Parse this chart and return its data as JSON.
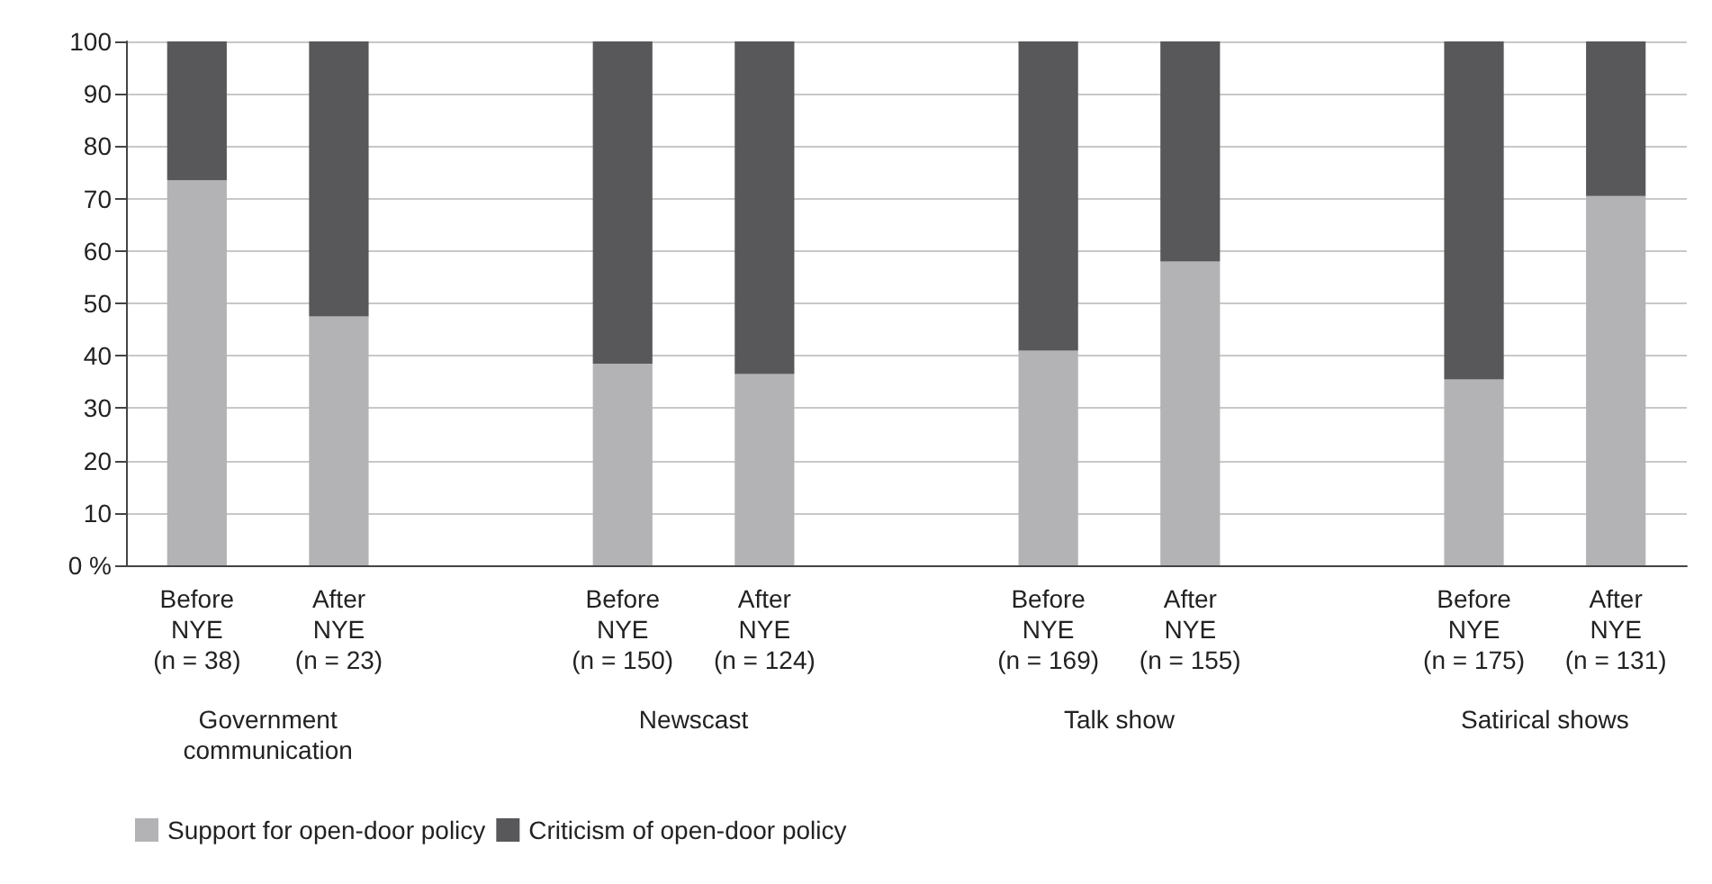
{
  "chart_data": {
    "type": "bar",
    "stacked": true,
    "categories": [
      "Before\nNYE\n(n = 38)",
      "After\nNYE\n(n = 23)",
      null,
      "Before\nNYE\n(n = 150)",
      "After\nNYE\n(n = 124)",
      null,
      "Before\nNYE\n(n = 169)",
      "After\nNYE\n(n = 155)",
      null,
      "Before\nNYE\n(n = 175)",
      "After\nNYE\n(n = 131)"
    ],
    "series": [
      {
        "name": "Support for open-door policy",
        "color": "#b3b3b5",
        "values": [
          73.5,
          47.5,
          null,
          38.5,
          36.5,
          null,
          41,
          58,
          null,
          35.5,
          70.5
        ]
      },
      {
        "name": "Criticism of open-door policy",
        "color": "#58585a",
        "values": [
          26.5,
          52.5,
          null,
          61.5,
          63.5,
          null,
          59,
          42,
          null,
          64.5,
          29.5
        ]
      }
    ],
    "ylim": [
      0,
      100
    ],
    "yticks": [
      {
        "value": 0,
        "label": "0 %"
      },
      10,
      20,
      30,
      40,
      50,
      60,
      70,
      80,
      90,
      100
    ],
    "grid": "y",
    "legend": "bottom left",
    "annotations": [
      "Government\ncommunication",
      "Newscast",
      "Talk show",
      "Satirical shows"
    ]
  }
}
